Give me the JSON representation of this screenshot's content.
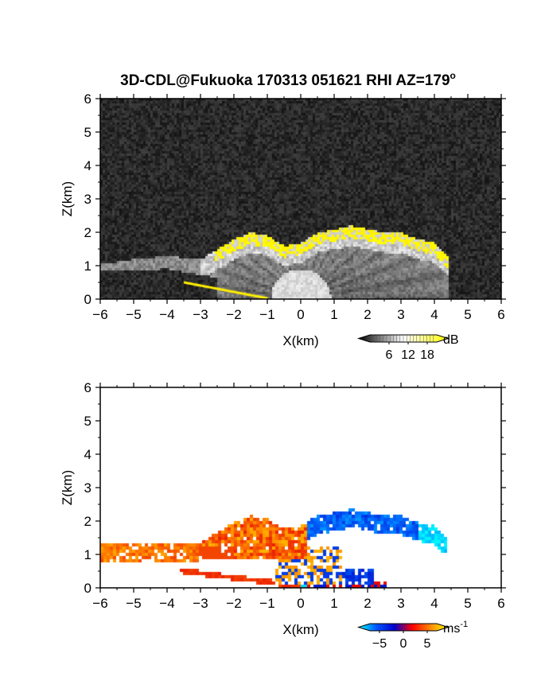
{
  "title": "3D-CDL@Fukuoka 170313 051621 RHI AZ=179",
  "title_superscript": "o",
  "chart_data": [
    {
      "type": "heatmap",
      "panel": "intensity",
      "xlabel": "X(km)",
      "ylabel": "Z(km)",
      "xlim": [
        -6,
        6
      ],
      "ylim": [
        0,
        6
      ],
      "xticks": [
        "-6",
        "-5",
        "-4",
        "-3",
        "-2",
        "-1",
        "0",
        "1",
        "2",
        "3",
        "4",
        "5",
        "6"
      ],
      "yticks": [
        "0",
        "1",
        "2",
        "3",
        "4",
        "5",
        "6"
      ],
      "colorbar": {
        "unit": "dB",
        "ticks": [
          "6",
          "12",
          "18"
        ],
        "tick_values": [
          6,
          12,
          18
        ],
        "range": [
          0,
          21
        ],
        "colors": [
          "#000000",
          "#ffffff",
          "#ffff00"
        ]
      },
      "cloud_top_km": [
        {
          "x": -6.0,
          "z": 1.05
        },
        {
          "x": -5.0,
          "z": 1.2
        },
        {
          "x": -4.0,
          "z": 1.3
        },
        {
          "x": -3.0,
          "z": 1.2
        },
        {
          "x": -2.0,
          "z": 1.8
        },
        {
          "x": -1.5,
          "z": 2.0
        },
        {
          "x": -1.0,
          "z": 1.9
        },
        {
          "x": -0.5,
          "z": 1.6
        },
        {
          "x": 0.0,
          "z": 1.7
        },
        {
          "x": 0.5,
          "z": 2.0
        },
        {
          "x": 1.0,
          "z": 2.1
        },
        {
          "x": 1.5,
          "z": 2.2
        },
        {
          "x": 2.0,
          "z": 2.1
        },
        {
          "x": 2.5,
          "z": 2.0
        },
        {
          "x": 3.0,
          "z": 2.0
        },
        {
          "x": 3.5,
          "z": 1.8
        },
        {
          "x": 4.0,
          "z": 1.7
        },
        {
          "x": 4.4,
          "z": 1.3
        }
      ]
    },
    {
      "type": "heatmap",
      "panel": "velocity",
      "xlabel": "X(km)",
      "ylabel": "Z(km)",
      "xlim": [
        -6,
        6
      ],
      "ylim": [
        0,
        6
      ],
      "xticks": [
        "-6",
        "-5",
        "-4",
        "-3",
        "-2",
        "-1",
        "0",
        "1",
        "2",
        "3",
        "4",
        "5",
        "6"
      ],
      "yticks": [
        "0",
        "1",
        "2",
        "3",
        "4",
        "5",
        "6"
      ],
      "colorbar": {
        "unit": "ms",
        "unit_superscript": "-1",
        "ticks": [
          "-5",
          "0",
          "5"
        ],
        "tick_values": [
          -5,
          0,
          5
        ],
        "range": [
          -7,
          7
        ],
        "colors": [
          "#00ffff",
          "#0055ff",
          "#0000cc",
          "#ff0000",
          "#ff8800",
          "#ffff00"
        ]
      }
    }
  ]
}
